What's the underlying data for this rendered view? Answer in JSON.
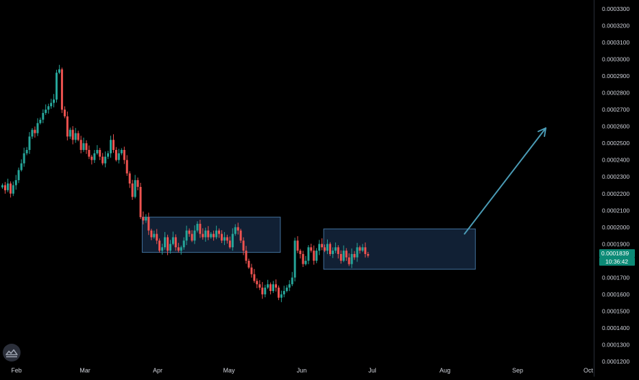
{
  "chart_data": {
    "type": "candlestick",
    "x_tick_labels": [
      "Feb",
      "Mar",
      "Apr",
      "May",
      "Jun",
      "Jul",
      "Aug",
      "Sep",
      "Oct"
    ],
    "y_tick_labels": [
      "0.0001200",
      "0.0001300",
      "0.0001400",
      "0.0001500",
      "0.0001600",
      "0.0001700",
      "0.0001800",
      "0.0001900",
      "0.0002000",
      "0.0002100",
      "0.0002200",
      "0.0002300",
      "0.0002400",
      "0.0002500",
      "0.0002600",
      "0.0002700",
      "0.0002800",
      "0.0002900",
      "0.0003000",
      "0.0003100",
      "0.0003200",
      "0.0003300"
    ],
    "ylim": [
      0.00012,
      0.00033
    ],
    "last_price": "0.0001839",
    "countdown": "10:36:42",
    "closes": [
      0.000225,
      0.000222,
      0.000226,
      0.00022,
      0.000225,
      0.000228,
      0.000234,
      0.000238,
      0.000244,
      0.000246,
      0.000254,
      0.000258,
      0.000256,
      0.000262,
      0.000264,
      0.000268,
      0.00027,
      0.000272,
      0.000274,
      0.000276,
      0.000292,
      0.000294,
      0.00027,
      0.000266,
      0.000254,
      0.000258,
      0.000252,
      0.000256,
      0.000252,
      0.000246,
      0.00025,
      0.000246,
      0.000242,
      0.00024,
      0.000244,
      0.000246,
      0.000242,
      0.000238,
      0.000242,
      0.000244,
      0.000252,
      0.000246,
      0.00024,
      0.000244,
      0.000246,
      0.00024,
      0.000232,
      0.000226,
      0.000218,
      0.000228,
      0.000224,
      0.000206,
      0.000204,
      0.000206,
      0.000198,
      0.000194,
      0.000196,
      0.000192,
      0.000186,
      0.000188,
      0.000194,
      0.000186,
      0.00019,
      0.000194,
      0.000188,
      0.000186,
      0.000188,
      0.000192,
      0.000198,
      0.000196,
      0.000192,
      0.000198,
      0.000202,
      0.000196,
      0.000194,
      0.000198,
      0.000194,
      0.000196,
      0.000194,
      0.000198,
      0.000196,
      0.000192,
      0.000194,
      0.000192,
      0.000188,
      0.000196,
      0.0002,
      0.000198,
      0.000192,
      0.000186,
      0.00018,
      0.000176,
      0.000172,
      0.000168,
      0.000166,
      0.000164,
      0.00016,
      0.000164,
      0.000166,
      0.000162,
      0.000166,
      0.000164,
      0.000158,
      0.00016,
      0.000162,
      0.000164,
      0.000166,
      0.00017,
      0.000192,
      0.000186,
      0.000184,
      0.000178,
      0.00018,
      0.000188,
      0.000186,
      0.00018,
      0.000186,
      0.00019,
      0.000188,
      0.000186,
      0.00019,
      0.000184,
      0.000186,
      0.000188,
      0.000184,
      0.00018,
      0.000186,
      0.000182,
      0.000178,
      0.000184,
      0.000182,
      0.000188,
      0.000186,
      0.000188,
      0.000184,
      0.000183
    ],
    "annotations": [
      {
        "type": "rectangle",
        "x_start_index": 52,
        "x_end_index": 103,
        "y_low": 0.000185,
        "y_high": 0.000206
      },
      {
        "type": "rectangle",
        "x_start_index": 119,
        "x_end_index": 175,
        "y_low": 0.000175,
        "y_high": 0.000199
      },
      {
        "type": "arrow",
        "x_start_index": 171,
        "y_start": 0.000196,
        "x_end_index": 201,
        "y_end": 0.000259
      }
    ]
  },
  "colors": {
    "background": "#000000",
    "up": "#26a69a",
    "down": "#ef5350",
    "axis_text": "#d1d4dc",
    "box_fill": "#1f3a5f",
    "box_stroke": "#5b9bd5",
    "arrow": "#4a9bb5",
    "price_tag": "#0c8a76"
  }
}
